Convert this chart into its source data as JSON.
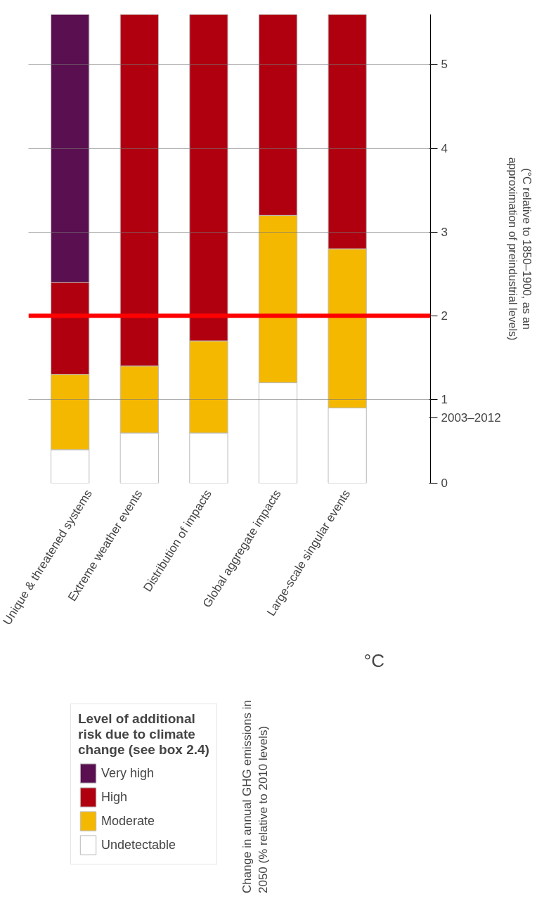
{
  "chart_data": {
    "type": "bar",
    "stacked": true,
    "categories": [
      "Unique & threatened systems",
      "Extreme weather events",
      "Distribution of impacts",
      "Global aggregate impacts",
      "Large-scale singular events"
    ],
    "series": [
      {
        "name": "Undetectable",
        "color": "#ffffff",
        "values": [
          0.4,
          0.6,
          0.6,
          1.2,
          0.9
        ]
      },
      {
        "name": "Moderate",
        "color": "#f5b800",
        "values": [
          0.9,
          0.8,
          1.1,
          2,
          1.9
        ]
      },
      {
        "name": "High",
        "color": "#b00010",
        "values": [
          1.1,
          4.2,
          3.9,
          2.4,
          2.8
        ]
      },
      {
        "name": "Very high",
        "color": "#5a1050",
        "values": [
          3.2,
          null,
          null,
          null,
          null
        ]
      }
    ],
    "ylim": [
      0,
      5.6
    ],
    "yticks": [
      0,
      1,
      2,
      3,
      4,
      5,
      {
        "value": 0.78,
        "label": "2003–2012"
      }
    ],
    "ylabel": "(°C relative to 1850–1900, as an approximation of preindustrial levels)",
    "legend_title": "Level of additional risk due to climate change (see box 2.4)",
    "legend": "bottom left",
    "grid": "y",
    "ref_lines": [
      {
        "axis": "y",
        "value": 2,
        "color": "#ff0000"
      }
    ],
    "annotations": [
      "°C",
      "Change in annual GHG emissions in 2050 (% relative to 2010 levels)"
    ]
  }
}
